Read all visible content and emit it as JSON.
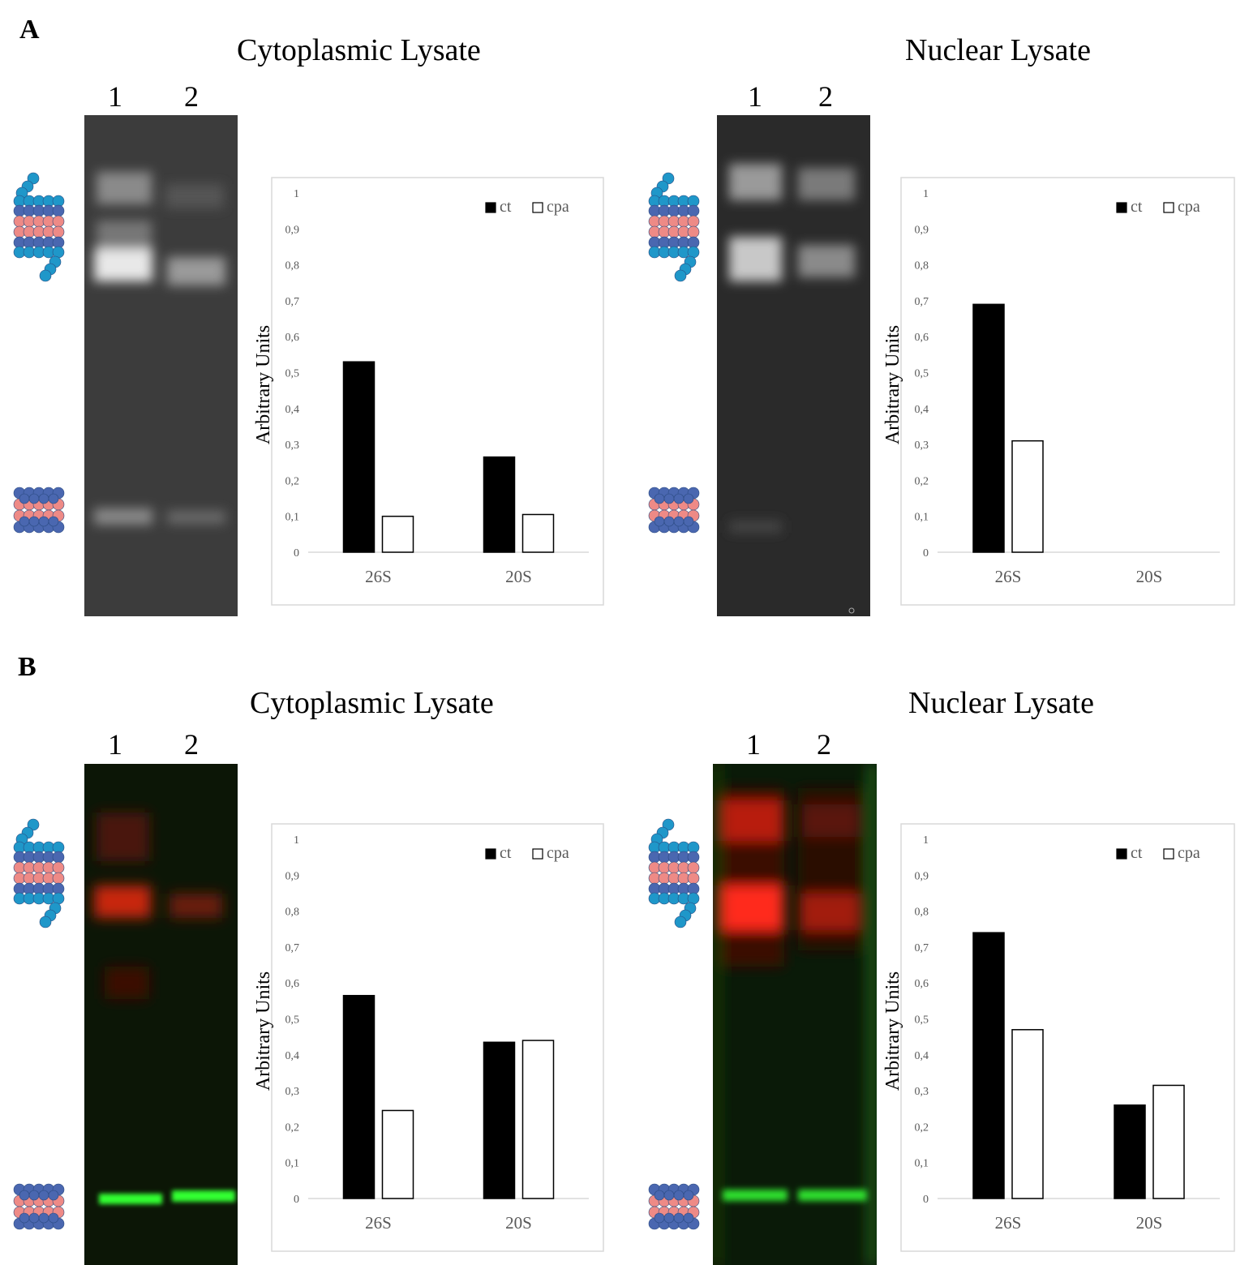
{
  "panels": [
    {
      "letter": "A",
      "sections": [
        {
          "title": "Cytoplasmic Lysate",
          "lanes": [
            "1",
            "2"
          ],
          "gel": {
            "kind": "grayscale"
          },
          "icons": [
            "proteasome-26s-icon",
            "proteasome-20s-icon"
          ]
        },
        {
          "title": "Nuclear Lysate",
          "lanes": [
            "1",
            "2"
          ],
          "gel": {
            "kind": "grayscale"
          },
          "icons": [
            "proteasome-26s-icon",
            "proteasome-20s-icon"
          ]
        }
      ]
    },
    {
      "letter": "B",
      "sections": [
        {
          "title": "Cytoplasmic Lysate",
          "lanes": [
            "1",
            "2"
          ],
          "gel": {
            "kind": "fluorescent",
            "colors": {
              "red": "#ff2a1a",
              "green": "#33ff33"
            }
          },
          "icons": [
            "proteasome-26s-icon",
            "proteasome-20s-icon"
          ]
        },
        {
          "title": "Nuclear Lysate",
          "lanes": [
            "1",
            "2"
          ],
          "gel": {
            "kind": "fluorescent",
            "colors": {
              "red": "#ff2a1a",
              "green": "#33ff33"
            }
          },
          "icons": [
            "proteasome-26s-icon",
            "proteasome-20s-icon"
          ]
        }
      ]
    }
  ],
  "colors": {
    "ct": "#000000",
    "cpa": "#ffffff",
    "cap_blue": "#1f97c9",
    "ring_dark": "#4a67b0",
    "ring_pink": "#ee8a86",
    "axis_text": "#595959"
  },
  "chart_data": [
    {
      "type": "bar",
      "panel": "A",
      "section": "Cytoplasmic Lysate",
      "categories": [
        "26S",
        "20S"
      ],
      "series": [
        {
          "name": "ct",
          "values": [
            0.53,
            0.265
          ]
        },
        {
          "name": "cpa",
          "values": [
            0.1,
            0.105
          ]
        }
      ],
      "ylabel": "Arbitrary Units",
      "ylim": [
        0,
        1
      ],
      "yticks": [
        "0",
        "0,1",
        "0,2",
        "0,3",
        "0,4",
        "0,5",
        "0,6",
        "0,7",
        "0,8",
        "0,9",
        "1"
      ],
      "legend": "top-right",
      "grid": false
    },
    {
      "type": "bar",
      "panel": "A",
      "section": "Nuclear Lysate",
      "categories": [
        "26S",
        "20S"
      ],
      "series": [
        {
          "name": "ct",
          "values": [
            0.69,
            0
          ]
        },
        {
          "name": "cpa",
          "values": [
            0.31,
            0
          ]
        }
      ],
      "ylabel": "Arbitrary Units",
      "ylim": [
        0,
        1
      ],
      "yticks": [
        "0",
        "0,1",
        "0,2",
        "0,3",
        "0,4",
        "0,5",
        "0,6",
        "0,7",
        "0,8",
        "0,9",
        "1"
      ],
      "legend": "top-right",
      "grid": false
    },
    {
      "type": "bar",
      "panel": "B",
      "section": "Cytoplasmic Lysate",
      "categories": [
        "26S",
        "20S"
      ],
      "series": [
        {
          "name": "ct",
          "values": [
            0.565,
            0.435
          ]
        },
        {
          "name": "cpa",
          "values": [
            0.245,
            0.44
          ]
        }
      ],
      "ylabel": "Arbitrary Units",
      "ylim": [
        0,
        1
      ],
      "yticks": [
        "0",
        "0,1",
        "0,2",
        "0,3",
        "0,4",
        "0,5",
        "0,6",
        "0,7",
        "0,8",
        "0,9",
        "1"
      ],
      "legend": "top-right",
      "grid": false
    },
    {
      "type": "bar",
      "panel": "B",
      "section": "Nuclear Lysate",
      "categories": [
        "26S",
        "20S"
      ],
      "series": [
        {
          "name": "ct",
          "values": [
            0.74,
            0.26
          ]
        },
        {
          "name": "cpa",
          "values": [
            0.47,
            0.315
          ]
        }
      ],
      "ylabel": "Arbitrary Units",
      "ylim": [
        0,
        1
      ],
      "yticks": [
        "0",
        "0,1",
        "0,2",
        "0,3",
        "0,4",
        "0,5",
        "0,6",
        "0,7",
        "0,8",
        "0,9",
        "1"
      ],
      "legend": "top-right",
      "grid": false
    }
  ]
}
